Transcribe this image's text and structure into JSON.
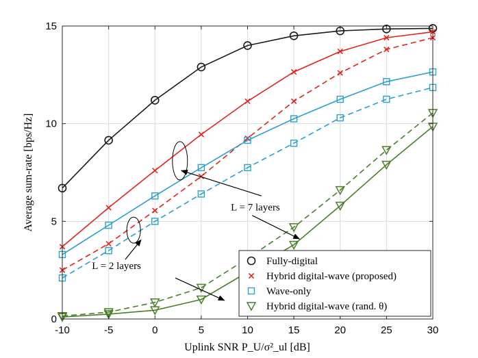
{
  "chart_data": {
    "type": "line",
    "title": "",
    "xlabel": "Uplink SNR P_U/σ²_ul [dB]",
    "ylabel": "Average sum-rate [bps/Hz]",
    "xlim": [
      -10,
      30
    ],
    "ylim": [
      0,
      15
    ],
    "x_ticks": [
      -10,
      -5,
      0,
      5,
      10,
      15,
      20,
      25,
      30
    ],
    "y_ticks": [
      0,
      5,
      10,
      15
    ],
    "grid": true,
    "legend_position": "bottom-right",
    "x": [
      -10,
      -5,
      0,
      5,
      10,
      15,
      20,
      25,
      30
    ],
    "series": [
      {
        "name": "Fully-digital",
        "layers": 7,
        "dash": "solid",
        "marker": "circle",
        "color": "#1a1a1a",
        "values": [
          6.7,
          9.15,
          11.2,
          12.9,
          14.0,
          14.5,
          14.75,
          14.85,
          14.88
        ]
      },
      {
        "name": "Hybrid digital-wave (proposed)",
        "layers": 7,
        "dash": "solid",
        "marker": "x",
        "color": "#e2231a",
        "values": [
          3.7,
          5.7,
          7.6,
          9.45,
          11.15,
          12.65,
          13.7,
          14.4,
          14.7
        ]
      },
      {
        "name": "Hybrid digital-wave (proposed)",
        "layers": 2,
        "dash": "dashed",
        "marker": "x",
        "color": "#e2231a",
        "values": [
          2.5,
          3.85,
          5.55,
          7.3,
          9.25,
          11.15,
          12.6,
          13.8,
          14.4
        ]
      },
      {
        "name": "Wave-only",
        "layers": 7,
        "dash": "solid",
        "marker": "square",
        "color": "#2a9fd0",
        "values": [
          3.3,
          4.8,
          6.3,
          7.75,
          9.15,
          10.25,
          11.25,
          12.15,
          12.65
        ]
      },
      {
        "name": "Wave-only",
        "layers": 2,
        "dash": "dashed",
        "marker": "square",
        "color": "#2a9fd0",
        "values": [
          2.1,
          3.5,
          5.0,
          6.4,
          7.75,
          9.0,
          10.3,
          11.25,
          11.85
        ]
      },
      {
        "name": "Hybrid digital-wave (rand. θ)",
        "layers": 7,
        "dash": "solid",
        "marker": "triangle-down",
        "color": "#4a7f2a",
        "values": [
          0.1,
          0.25,
          0.45,
          1.0,
          2.4,
          3.8,
          5.8,
          7.9,
          9.85
        ]
      },
      {
        "name": "Hybrid digital-wave (rand. θ)",
        "layers": 2,
        "dash": "dashed",
        "marker": "triangle-down",
        "color": "#4a7f2a",
        "values": [
          0.15,
          0.35,
          0.85,
          1.6,
          3.1,
          4.7,
          6.6,
          8.65,
          10.55
        ]
      }
    ],
    "legend": [
      {
        "label": "Fully-digital",
        "marker": "circle",
        "color": "#1a1a1a"
      },
      {
        "label": "Hybrid digital-wave (proposed)",
        "marker": "x",
        "color": "#e2231a"
      },
      {
        "label": "Wave-only",
        "marker": "square",
        "color": "#2a9fd0"
      },
      {
        "label": "Hybrid digital-wave (rand. θ)",
        "marker": "triangle-down",
        "color": "#4a7f2a"
      }
    ],
    "annotations": [
      {
        "text": "L = 7 layers"
      },
      {
        "text": "L = 2 layers"
      }
    ]
  }
}
